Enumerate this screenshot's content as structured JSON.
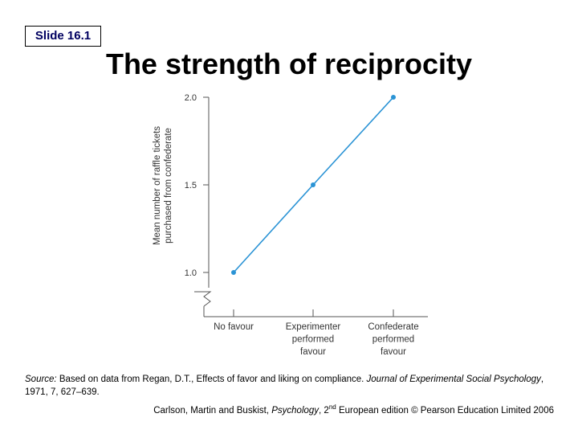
{
  "slide": {
    "label": "Slide 16.1",
    "title": "The strength of reciprocity"
  },
  "chart_data": {
    "type": "line",
    "categories": [
      "No favour",
      "Experimenter performed favour",
      "Confederate performed favour"
    ],
    "category_lines": [
      [
        "No favour"
      ],
      [
        "Experimenter",
        "performed",
        "favour"
      ],
      [
        "Confederate",
        "performed",
        "favour"
      ]
    ],
    "values": [
      1.0,
      1.5,
      2.0
    ],
    "ylabel_lines": [
      "Mean number of raffle tickets",
      "purchased from confederate"
    ],
    "xlabel": "",
    "ylim": [
      1.0,
      2.0
    ],
    "yticks": [
      "1.0",
      "1.5",
      "2.0"
    ],
    "axis_break": true,
    "grid": false,
    "color": "#2a93d5"
  },
  "source": {
    "prefix": "Source:",
    "text1": " Based on data from Regan, D.T., Effects of favor and liking on compliance. ",
    "journal": "Journal of Experimental Social Psychology",
    "text2": ", 1971, 7, 627–639."
  },
  "credit": {
    "authors": "Carlson, Martin and Buskist, ",
    "book": "Psychology",
    "edition_num": ", 2",
    "edition_sup": "nd",
    "rest": " European edition © Pearson Education Limited 2006"
  }
}
